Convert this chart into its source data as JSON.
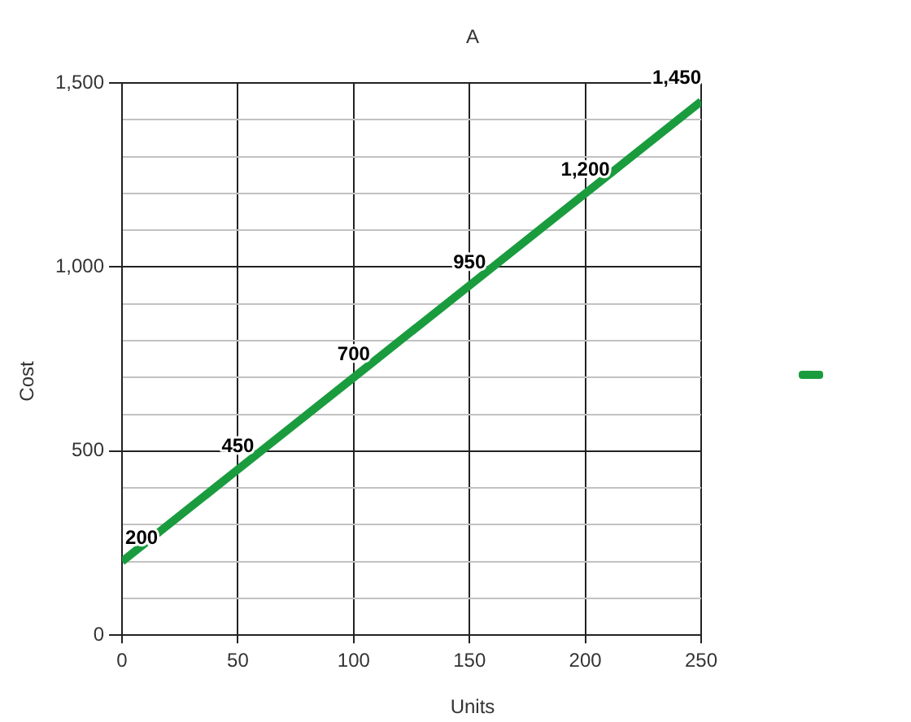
{
  "chart_data": {
    "type": "line",
    "title": "A",
    "xlabel": "Units",
    "ylabel": "Cost",
    "x": [
      0,
      50,
      100,
      150,
      200,
      250
    ],
    "series": [
      {
        "color": "#1a9c3e",
        "values": [
          200,
          450,
          700,
          950,
          1200,
          1450
        ],
        "value_labels": [
          "200",
          "450",
          "700",
          "950",
          "1,200",
          "1,450"
        ]
      }
    ],
    "xlim": [
      0,
      250
    ],
    "xticks": [
      0,
      50,
      100,
      150,
      200,
      250
    ],
    "ylim": [
      0,
      1500
    ],
    "yticks": [
      0,
      {
        "value": 100,
        "label": null
      },
      {
        "value": 200,
        "label": null
      },
      {
        "value": 300,
        "label": null
      },
      {
        "value": 400,
        "label": null
      },
      500,
      {
        "value": 600,
        "label": null
      },
      {
        "value": 700,
        "label": null
      },
      {
        "value": 800,
        "label": null
      },
      {
        "value": 900,
        "label": null
      },
      {
        "value": 1000,
        "label": "1,000"
      },
      {
        "value": 1100,
        "label": null
      },
      {
        "value": 1200,
        "label": null
      },
      {
        "value": 1300,
        "label": null
      },
      {
        "value": 1400,
        "label": null
      },
      {
        "value": 1500,
        "label": "1,500"
      }
    ],
    "grid": true,
    "marker": "none",
    "line_style": "solid"
  }
}
